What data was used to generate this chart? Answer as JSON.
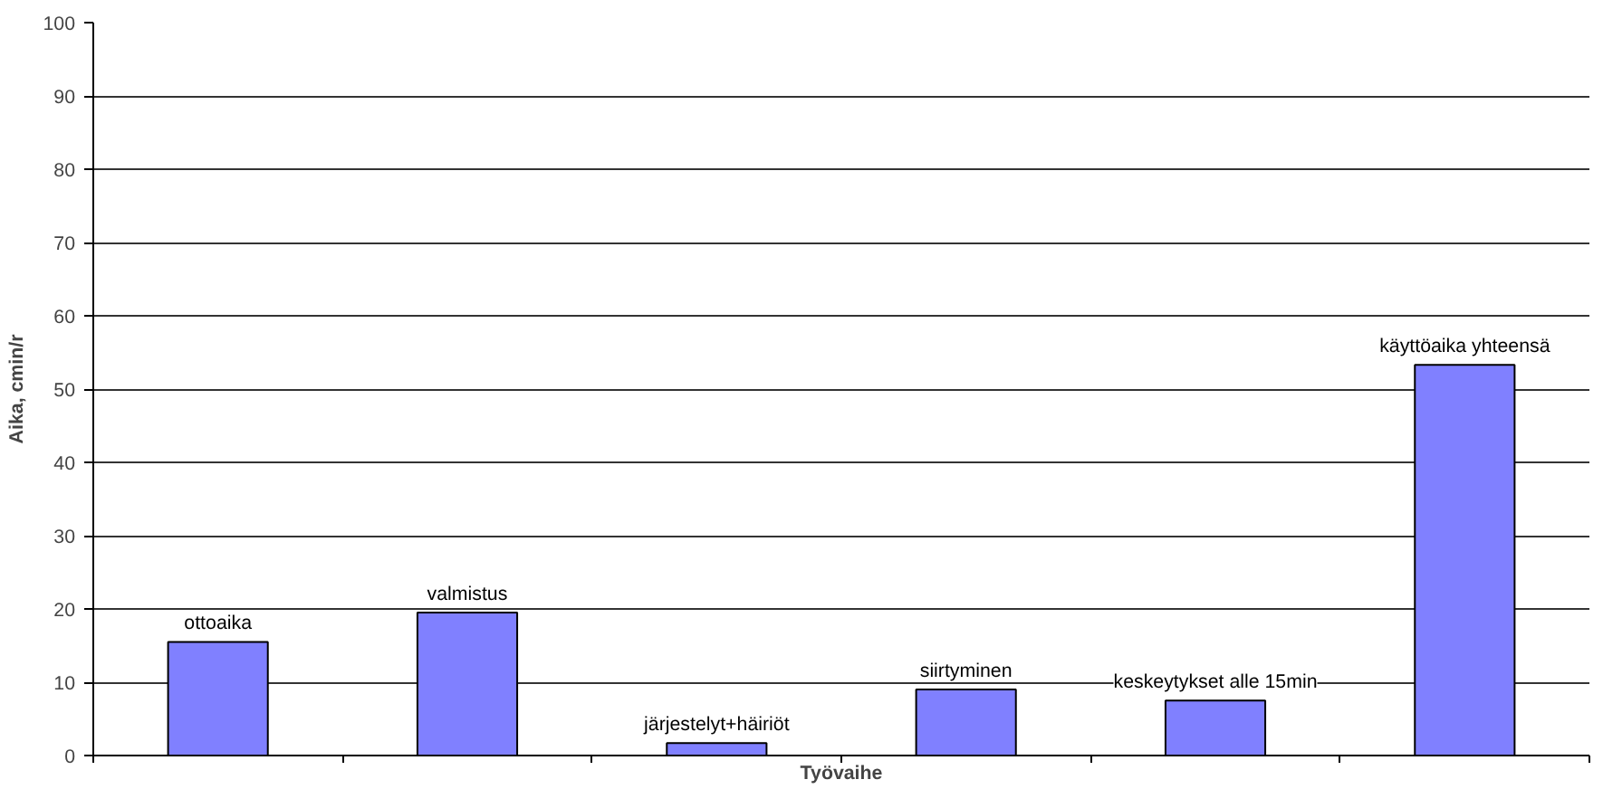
{
  "chart_data": {
    "type": "bar",
    "xlabel": "Työvaihe",
    "ylabel": "Aika, cmin/r",
    "categories": [
      "ottoaika",
      "valmistus",
      "järjestelyt+häiriöt",
      "siirtyminen",
      "keskeytykset alle 15min",
      "käyttöaika yhteensä"
    ],
    "values": [
      15.5,
      19.5,
      1.7,
      9,
      7.5,
      53.3
    ],
    "color": "#8080ff",
    "ylim": [
      0,
      100
    ],
    "yticks": [
      0,
      10,
      20,
      30,
      40,
      50,
      60,
      70,
      80,
      90,
      100
    ],
    "grid": "y",
    "tick_labels": "y"
  }
}
